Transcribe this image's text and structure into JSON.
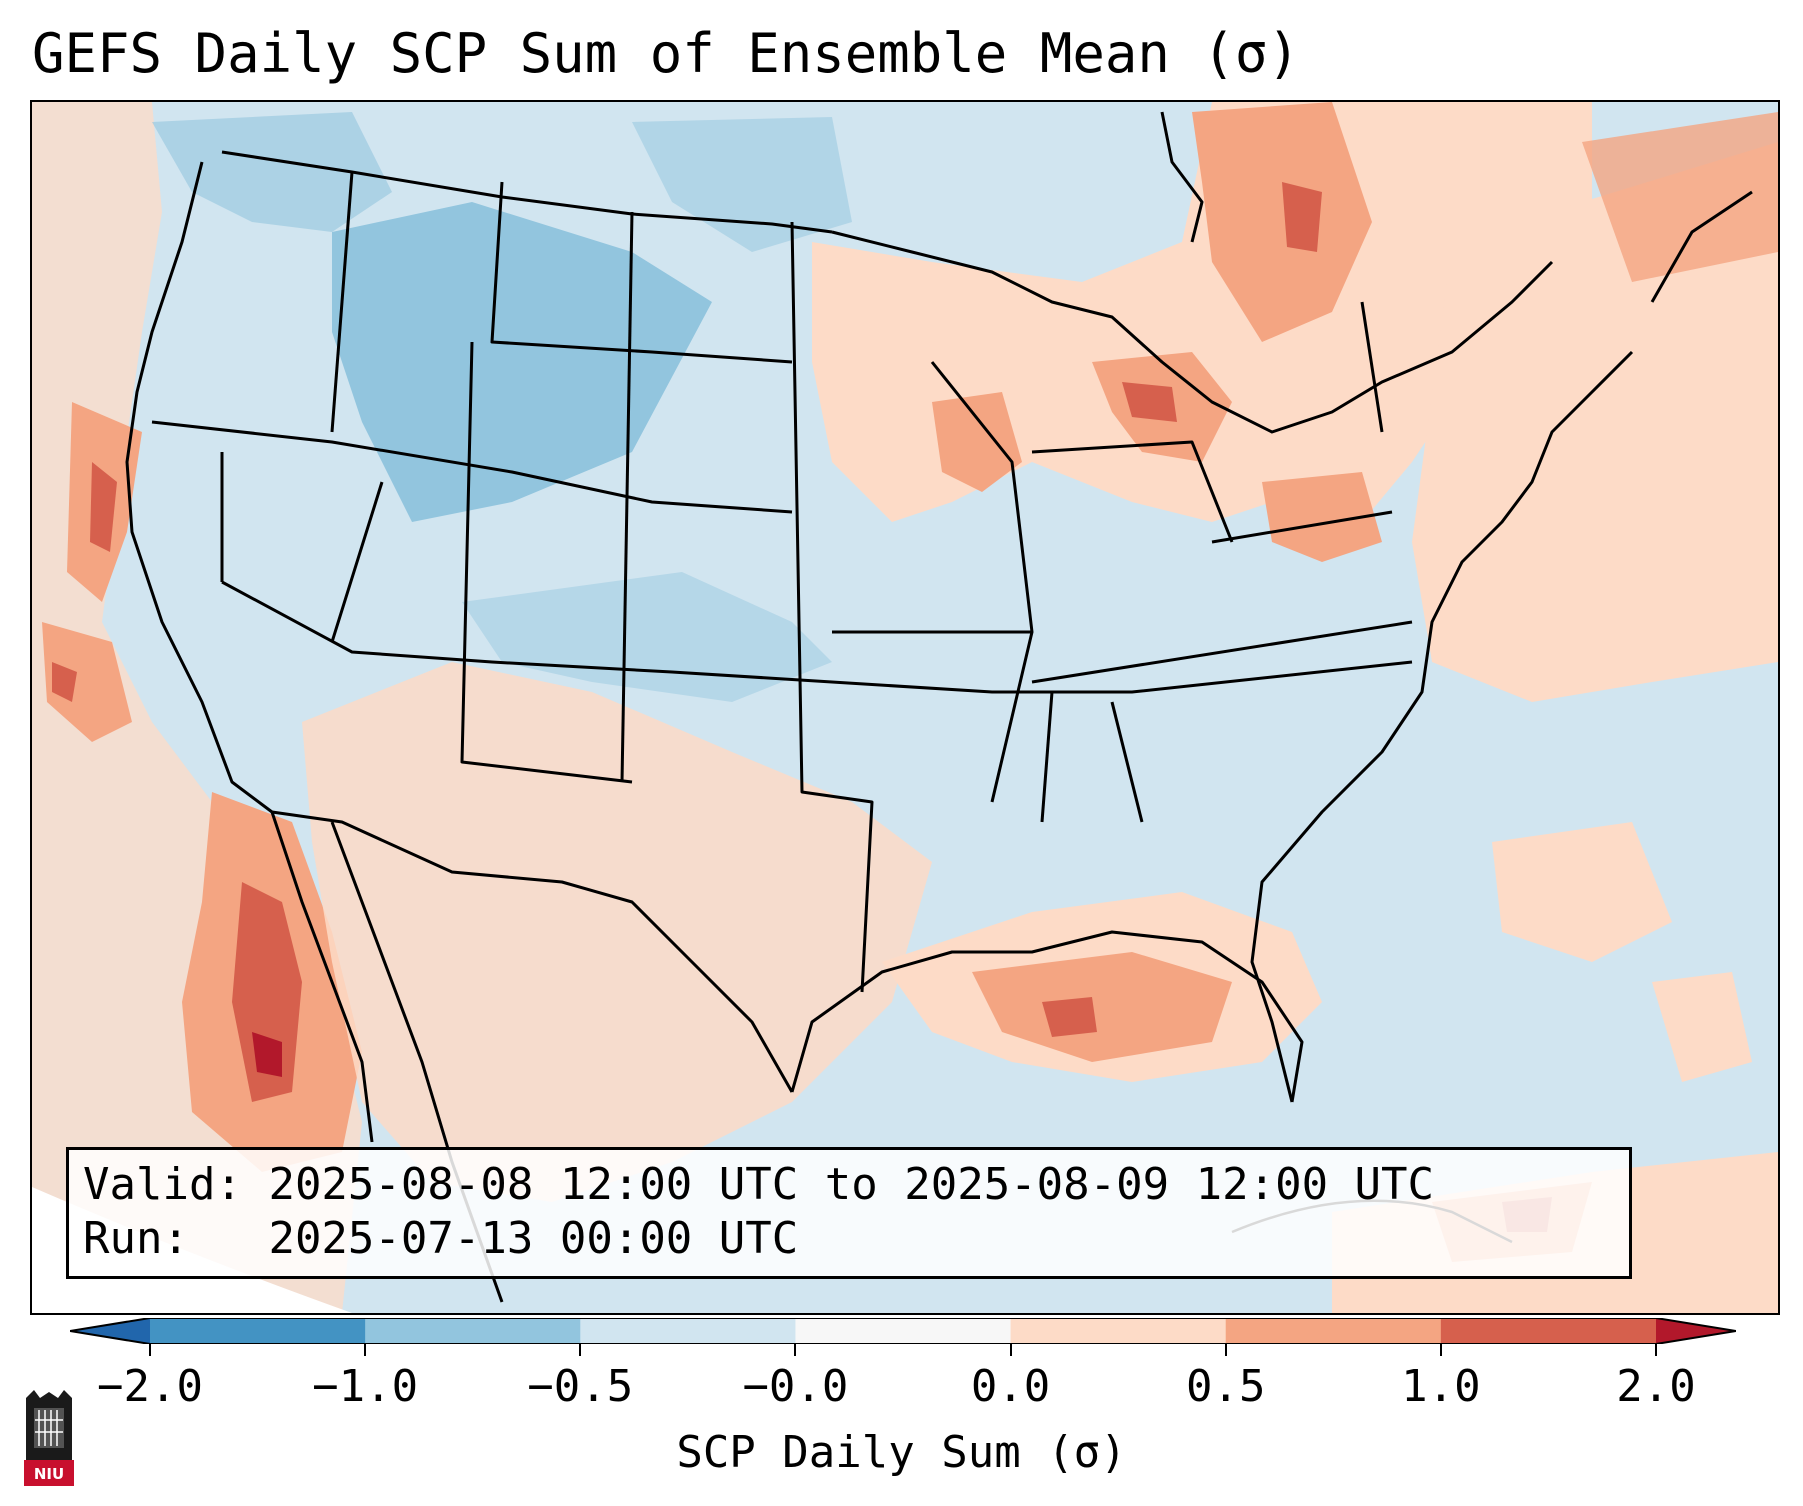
{
  "title": "GEFS Daily SCP Sum of Ensemble Mean (σ)",
  "info": {
    "valid_label": "Valid:",
    "valid_text": "2025-08-08 12:00 UTC to 2025-08-09 12:00 UTC",
    "run_label": "Run:",
    "run_text": "2025-07-13 00:00 UTC"
  },
  "colorbar": {
    "label": "SCP Daily Sum (σ)",
    "ticks": [
      "−2.0",
      "−1.0",
      "−0.5",
      "−0.0",
      "0.0",
      "0.5",
      "1.0",
      "2.0"
    ],
    "bins": [
      {
        "from": -2.0,
        "to": -1.0,
        "color": "#4393c3"
      },
      {
        "from": -1.0,
        "to": -0.5,
        "color": "#92c5de"
      },
      {
        "from": -0.5,
        "to": -0.0,
        "color": "#d1e5f0"
      },
      {
        "from": -0.0,
        "to": 0.0,
        "color": "#f7f7f7"
      },
      {
        "from": 0.0,
        "to": 0.5,
        "color": "#fddbc7"
      },
      {
        "from": 0.5,
        "to": 1.0,
        "color": "#f4a582"
      },
      {
        "from": 1.0,
        "to": 2.0,
        "color": "#d6604d"
      }
    ],
    "under_color": "#2166ac",
    "over_color": "#b2182b"
  },
  "logo": {
    "text": "NIU",
    "icon": "university-tower-icon"
  },
  "colors": {
    "ocean_neutral": "#d1e5f0",
    "boundary": "#000000"
  }
}
